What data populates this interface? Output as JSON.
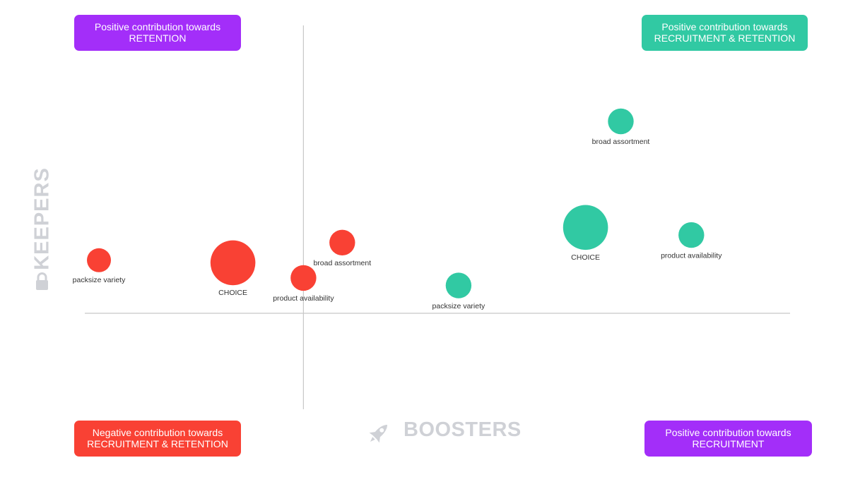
{
  "colors": {
    "negative": "#f94134",
    "positive": "#31c9a3",
    "purple": "#a32ef9",
    "teal_box": "#31c9a3",
    "axis_title": "#cfd1d6",
    "axis_line": "#c8c8c8"
  },
  "quadrants": {
    "top_left": {
      "line1": "Positive contribution towards",
      "line2": "RETENTION"
    },
    "top_right": {
      "line1": "Positive contribution towards",
      "line2": "RECRUITMENT & RETENTION"
    },
    "bottom_left": {
      "line1": "Negative contribution towards",
      "line2": "RECRUITMENT & RETENTION"
    },
    "bottom_right": {
      "line1": "Positive contribution towards",
      "line2": "RECRUITMENT"
    }
  },
  "axes": {
    "y_title": "KEEPERS",
    "x_title": "BOOSTERS",
    "y_icon": "lock-icon",
    "x_icon": "rocket-icon"
  },
  "chart_data": {
    "type": "scatter",
    "title": "",
    "xlabel": "BOOSTERS",
    "ylabel": "KEEPERS",
    "xlim": [
      -31,
      69
    ],
    "ylim": [
      -19,
      57
    ],
    "grid": false,
    "legend": "none",
    "series": [
      {
        "color": "#f94134",
        "points": [
          {
            "label": "packsize variety",
            "x": -29,
            "y": 10.5,
            "size": 1.0
          },
          {
            "label": "CHOICE",
            "x": -10,
            "y": 10,
            "size": 3.5
          },
          {
            "label": "broad assortment",
            "x": 5.5,
            "y": 14,
            "size": 1.15
          },
          {
            "label": "product availability",
            "x": 0,
            "y": 7,
            "size": 1.15
          }
        ]
      },
      {
        "color": "#31c9a3",
        "points": [
          {
            "label": "broad assortment",
            "x": 45,
            "y": 38,
            "size": 1.15
          },
          {
            "label": "CHOICE",
            "x": 40,
            "y": 17,
            "size": 3.5
          },
          {
            "label": "product availability",
            "x": 55,
            "y": 15.5,
            "size": 1.15
          },
          {
            "label": "packsize variety",
            "x": 22,
            "y": 5.5,
            "size": 1.15
          }
        ]
      }
    ]
  }
}
